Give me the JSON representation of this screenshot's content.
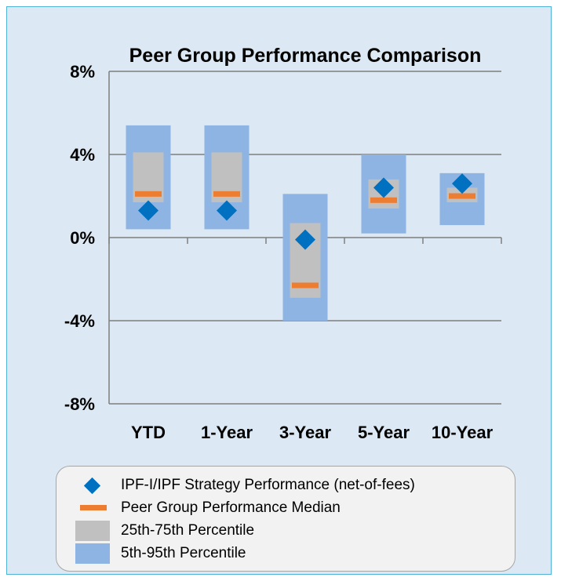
{
  "colors": {
    "band_5_95": "#8db4e2",
    "band_25_75": "#c0c0c0",
    "median": "#ed7d31",
    "strategy": "#0070c0",
    "grid": "#7f7f7f",
    "frame_bg": "#dce9f4"
  },
  "chart_data": {
    "type": "box",
    "title": "Peer Group Performance Comparison",
    "xlabel": "",
    "ylabel": "",
    "ylim": [
      -8,
      8
    ],
    "yticks": [
      8,
      4,
      0,
      -4,
      -8
    ],
    "ytick_labels": [
      "8%",
      "4%",
      "0%",
      "-4%",
      "-8%"
    ],
    "categories": [
      "YTD",
      "1-Year",
      "3-Year",
      "5-Year",
      "10-Year"
    ],
    "p5": [
      0.4,
      0.4,
      -4.0,
      0.2,
      0.6
    ],
    "p95": [
      5.4,
      5.4,
      2.1,
      4.0,
      3.1
    ],
    "p25": [
      1.7,
      1.7,
      -2.9,
      1.4,
      1.7
    ],
    "p75": [
      4.1,
      4.1,
      0.7,
      2.8,
      2.4
    ],
    "median": [
      2.1,
      2.1,
      -2.3,
      1.8,
      2.0
    ],
    "strategy": [
      1.3,
      1.3,
      -0.1,
      2.4,
      2.6
    ],
    "grid": true,
    "legend_position": "bottom"
  },
  "legend": {
    "items": [
      {
        "label": "IPF-I/IPF Strategy Performance (net-of-fees)",
        "symbol": "diamond-icon"
      },
      {
        "label": "Peer Group Performance Median",
        "symbol": "dash-icon"
      },
      {
        "label": "25th-75th Percentile",
        "symbol": "gray-box-icon"
      },
      {
        "label": "5th-95th Percentile",
        "symbol": "blue-box-icon"
      }
    ]
  }
}
